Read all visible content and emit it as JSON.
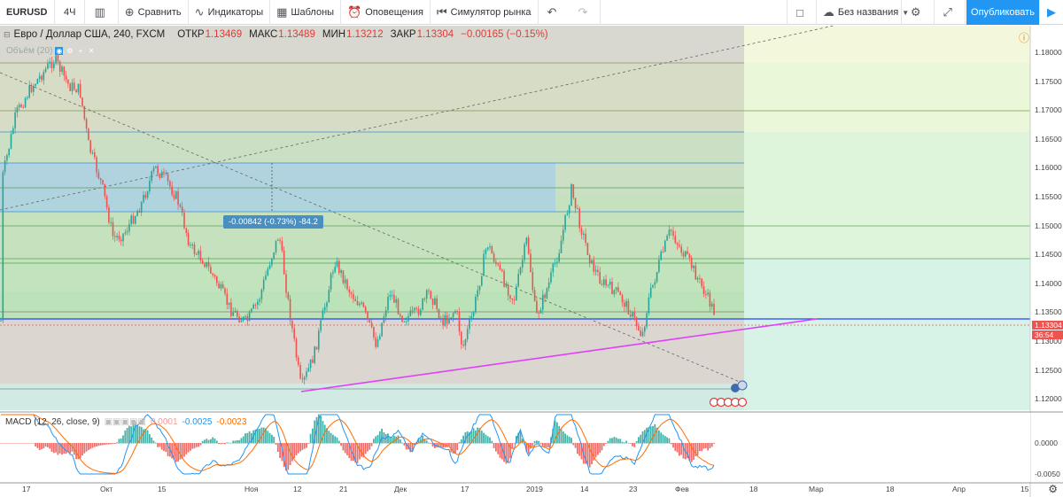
{
  "toolbar": {
    "symbol": "EURUSD",
    "interval": "4Ч",
    "compare": "Сравнить",
    "indicators": "Индикаторы",
    "templates": "Шаблоны",
    "alerts": "Оповещения",
    "replay": "Симулятор рынка",
    "layout_name": "Без названия",
    "publish": "Опубликовать"
  },
  "legend": {
    "title": "Евро / Доллар США, 240, FXCM",
    "open_label": "ОТКР",
    "open": "1.13469",
    "high_label": "МАКС",
    "high": "1.13489",
    "low_label": "МИН",
    "low": "1.13212",
    "close_label": "ЗАКР",
    "close": "1.13304",
    "change": "−0.00165 (−0.15%)",
    "volume": "Объём (20)"
  },
  "measure": "-0.00842 (-0.73%) -84.2",
  "macd": {
    "name": "MACD (12, 26, close, 9)",
    "hist": "0.0001",
    "macd": "-0.0025",
    "signal": "-0.0023",
    "axis": [
      "0.0000"
    ],
    "axis_bottom": "-0.0050"
  },
  "price_axis": [
    "1.18000",
    "1.17500",
    "1.17000",
    "1.16500",
    "1.16000",
    "1.15500",
    "1.15000",
    "1.14500",
    "1.14000",
    "1.13500",
    "1.13000",
    "1.12500",
    "1.12000"
  ],
  "current_price": "1.13304",
  "countdown": "36:54",
  "time_axis": [
    "17",
    "Окт",
    "15",
    "Ноя",
    "12",
    "21",
    "Дек",
    "17",
    "2019",
    "14",
    "23",
    "Фев",
    "18",
    "Мар",
    "18",
    "Апр",
    "15"
  ],
  "events": {
    "top": "2 5",
    "bottom": "3"
  },
  "colors": {
    "up": "#26a69a",
    "down": "#ef5350",
    "accent": "#2196f3",
    "trendline": "#e040fb",
    "support": "#1e40ff",
    "macd_line": "#2196f3",
    "signal_line": "#ff6d00"
  },
  "chart_data": {
    "type": "candlestick",
    "symbol": "EURUSD",
    "interval": "240",
    "ylim": [
      1.118,
      1.183
    ],
    "key_points": {
      "x": [
        "Sep 20",
        "Sep 25",
        "Oct 9",
        "Oct 16",
        "Nov 7",
        "Nov 12",
        "Nov 19",
        "Dec 13",
        "Jan 10",
        "Jan 24",
        "Feb 1",
        "Feb 7"
      ],
      "close": [
        1.176,
        1.178,
        1.146,
        1.16,
        1.15,
        1.122,
        1.146,
        1.128,
        1.157,
        1.131,
        1.15,
        1.133
      ]
    }
  }
}
